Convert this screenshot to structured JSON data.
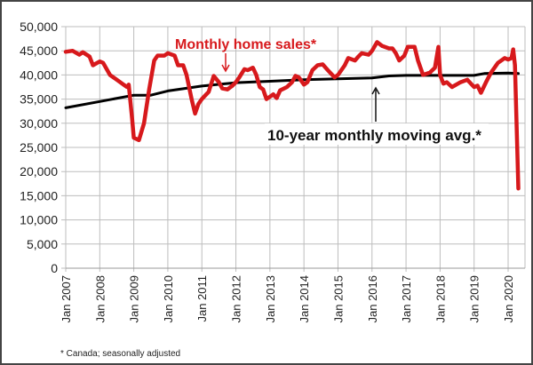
{
  "chart_data": {
    "type": "line",
    "title": "",
    "xlabel": "",
    "ylabel": "",
    "ylim": [
      0,
      50000
    ],
    "xlim": [
      2007.0,
      2020.5
    ],
    "grid": true,
    "y_ticks": [
      "0",
      "5,000",
      "10,000",
      "15,000",
      "20,000",
      "25,000",
      "30,000",
      "35,000",
      "40,000",
      "45,000",
      "50,000"
    ],
    "y_tick_values": [
      0,
      5000,
      10000,
      15000,
      20000,
      25000,
      30000,
      35000,
      40000,
      45000,
      50000
    ],
    "x_ticks": [
      "Jan 2007",
      "Jan 2008",
      "Jan 2009",
      "Jan 2010",
      "Jan 2011",
      "Jan 2012",
      "Jan 2013",
      "Jan 2014",
      "Jan 2015",
      "Jan 2016",
      "Jan 2017",
      "Jan 2018",
      "Jan 2019",
      "Jan 2020"
    ],
    "x_tick_values": [
      2007,
      2008,
      2009,
      2010,
      2011,
      2012,
      2013,
      2014,
      2015,
      2016,
      2017,
      2018,
      2019,
      2020
    ],
    "series": [
      {
        "name": "Monthly home sales*",
        "color": "#d7191c",
        "x": [
          2007.0,
          2007.2,
          2007.4,
          2007.5,
          2007.7,
          2007.8,
          2008.0,
          2008.1,
          2008.3,
          2008.5,
          2008.7,
          2008.8,
          2008.85,
          2008.95,
          2009.0,
          2009.15,
          2009.3,
          2009.45,
          2009.6,
          2009.7,
          2009.9,
          2010.0,
          2010.2,
          2010.3,
          2010.45,
          2010.55,
          2010.7,
          2010.8,
          2010.9,
          2011.0,
          2011.2,
          2011.35,
          2011.5,
          2011.6,
          2011.75,
          2011.9,
          2012.0,
          2012.1,
          2012.25,
          2012.35,
          2012.5,
          2012.6,
          2012.7,
          2012.8,
          2012.9,
          2013.0,
          2013.1,
          2013.2,
          2013.3,
          2013.5,
          2013.65,
          2013.75,
          2013.85,
          2014.0,
          2014.1,
          2014.25,
          2014.4,
          2014.55,
          2014.7,
          2014.9,
          2015.0,
          2015.2,
          2015.3,
          2015.5,
          2015.6,
          2015.7,
          2015.9,
          2016.0,
          2016.15,
          2016.3,
          2016.5,
          2016.6,
          2016.7,
          2016.8,
          2016.95,
          2017.05,
          2017.25,
          2017.35,
          2017.5,
          2017.7,
          2017.85,
          2017.95,
          2018.0,
          2018.1,
          2018.2,
          2018.35,
          2018.6,
          2018.8,
          2019.0,
          2019.1,
          2019.2,
          2019.35,
          2019.5,
          2019.7,
          2019.9,
          2020.0,
          2020.1,
          2020.15,
          2020.2,
          2020.3
        ],
        "values": [
          44800,
          45000,
          44200,
          44700,
          43800,
          42000,
          42800,
          42500,
          40000,
          39000,
          38000,
          37500,
          38000,
          31000,
          27000,
          26500,
          30000,
          37000,
          43000,
          44000,
          44000,
          44500,
          44000,
          42000,
          42000,
          40000,
          35000,
          32000,
          34000,
          35000,
          36500,
          39800,
          38500,
          37200,
          37000,
          37800,
          38500,
          39500,
          41200,
          41000,
          41500,
          40000,
          37500,
          37000,
          35000,
          35500,
          36000,
          35200,
          36800,
          37500,
          38500,
          39800,
          39500,
          38000,
          38500,
          41000,
          42000,
          42200,
          41000,
          39500,
          40000,
          42000,
          43500,
          43000,
          43800,
          44500,
          44200,
          45000,
          46800,
          46000,
          45500,
          45500,
          44500,
          43000,
          44000,
          45800,
          45800,
          43000,
          40000,
          40500,
          41500,
          45800,
          40000,
          38200,
          38500,
          37500,
          38500,
          39000,
          37500,
          37800,
          36300,
          38500,
          40500,
          42500,
          43500,
          43200,
          43500,
          45300,
          42000,
          16500
        ]
      },
      {
        "name": "10-year monthly moving avg.*",
        "color": "#000000",
        "x": [
          2007.0,
          2008.0,
          2009.0,
          2009.5,
          2010.0,
          2011.0,
          2012.0,
          2013.0,
          2014.0,
          2015.0,
          2016.0,
          2016.5,
          2017.0,
          2018.0,
          2019.0,
          2019.3,
          2020.0,
          2020.3
        ],
        "values": [
          33200,
          34500,
          35800,
          35800,
          36700,
          37700,
          38400,
          38700,
          39000,
          39200,
          39400,
          39800,
          39900,
          39900,
          39900,
          40300,
          40400,
          40300
        ]
      }
    ],
    "annotations": {
      "sales_label": "Monthly home sales*",
      "avg_label": "10-year monthly moving avg.*"
    },
    "footnote": "* Canada; seasonally adjusted"
  }
}
